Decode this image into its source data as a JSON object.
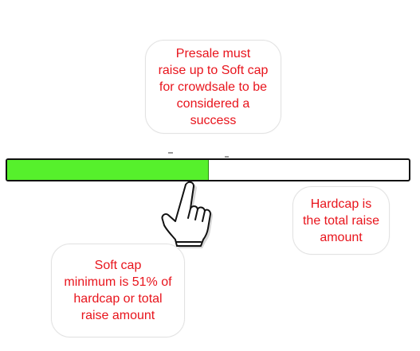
{
  "callouts": {
    "presale": "Presale must raise up to Soft cap for crowdsale to be considered a success",
    "presale_lines": [
      "Presale must",
      "raise up to Soft cap",
      "for crowdsale to be",
      "considered a",
      "success"
    ],
    "hardcap_lines": [
      "Hardcap is",
      "the total raise",
      "amount"
    ],
    "softcap_lines": [
      "Soft cap",
      "minimum is 51% of",
      "hardcap or total",
      "raise amount"
    ]
  },
  "progress": {
    "fill_fraction": 0.5,
    "fill_color": "#56f02c",
    "track_color": "#ffffff",
    "border_color": "#111111"
  },
  "colors": {
    "text": "#e8141c",
    "callout_border": "#e2e2e2"
  },
  "icons": {
    "cursor": "pointing-hand-icon"
  }
}
